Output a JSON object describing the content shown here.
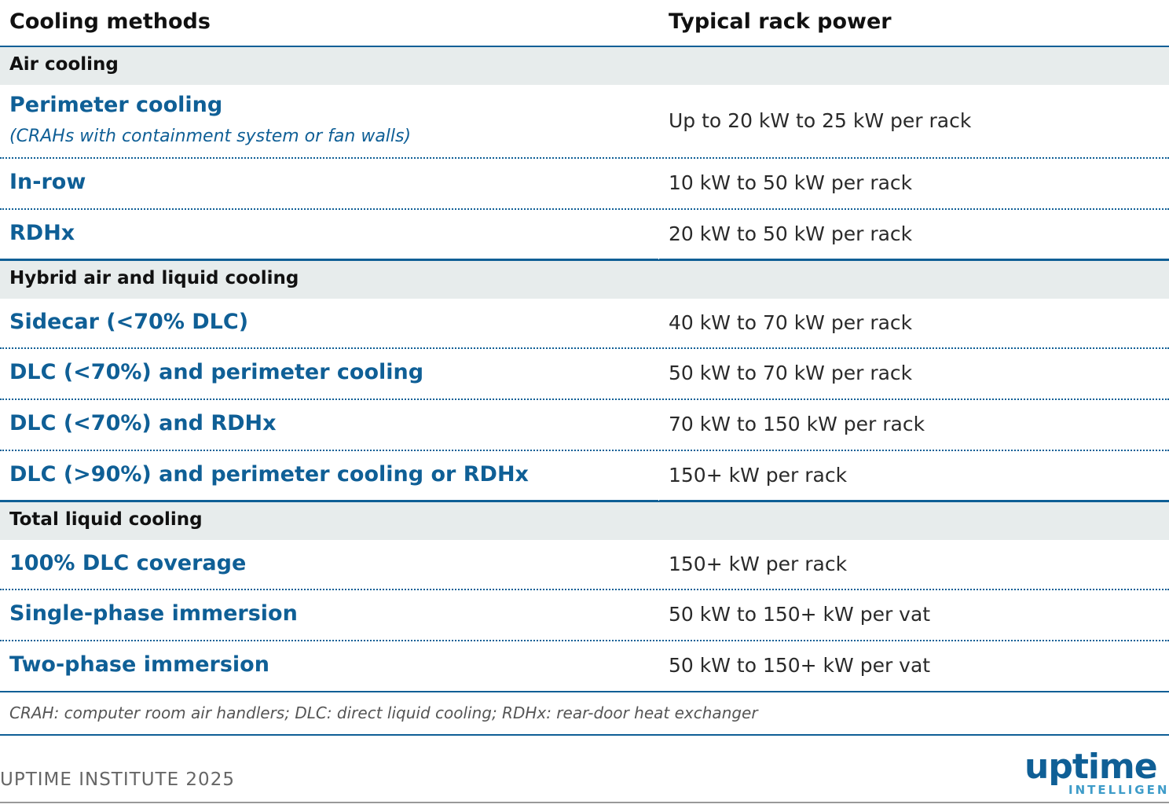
{
  "table": {
    "headers": [
      "Cooling methods",
      "Typical rack power"
    ],
    "sections": [
      {
        "title": "Air cooling",
        "rows": [
          {
            "method": "Perimeter cooling",
            "note": "(CRAHs with containment system or fan walls)",
            "power": "Up to 20 kW to 25 kW per rack"
          },
          {
            "method": "In-row",
            "power": "10 kW to 50 kW per rack"
          },
          {
            "method": "RDHx",
            "power": "20 kW to 50 kW per rack"
          }
        ]
      },
      {
        "title": "Hybrid air and liquid cooling",
        "rows": [
          {
            "method": "Sidecar (<70% DLC)",
            "power": "40 kW to 70 kW per rack"
          },
          {
            "method": "DLC (<70%) and perimeter cooling",
            "power": "50 kW to 70 kW per rack"
          },
          {
            "method": "DLC (<70%) and RDHx",
            "power": "70 kW to 150 kW per rack"
          },
          {
            "method": "DLC (>90%) and perimeter cooling or RDHx",
            "power": "150+ kW per rack"
          }
        ]
      },
      {
        "title": "Total liquid cooling",
        "rows": [
          {
            "method": "100% DLC coverage",
            "power": "150+ kW per rack"
          },
          {
            "method": "Single-phase immersion",
            "power": "50 kW to 150+ kW per vat"
          },
          {
            "method": "Two-phase immersion",
            "power": "50 kW to 150+ kW per vat"
          }
        ]
      }
    ]
  },
  "footnote": "CRAH: computer room air handlers; DLC: direct liquid cooling; RDHx: rear-door heat exchanger",
  "credit": "UPTIME INSTITUTE 2025",
  "logo": {
    "word": "uptime",
    "sub": "INTELLIGENCE"
  },
  "colors": {
    "accent": "#0f5f96",
    "section_bg": "#e7ecec"
  }
}
